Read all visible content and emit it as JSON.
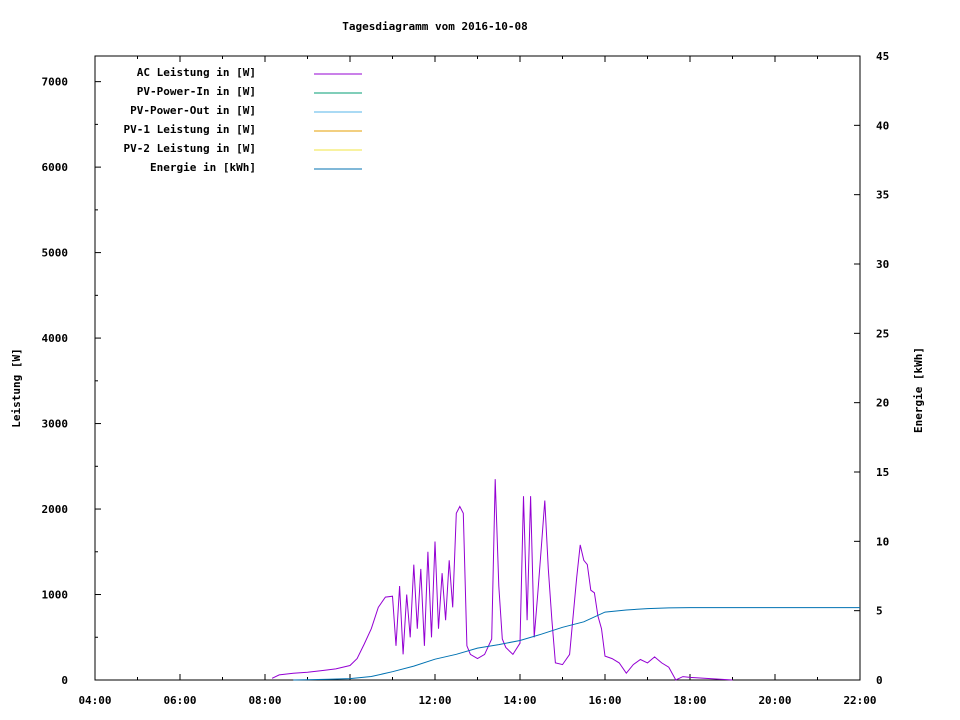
{
  "chart_data": {
    "type": "line",
    "title": "Tagesdiagramm vom 2016-10-08",
    "ylabel": "Leistung [W]",
    "y2label": "Energie [kWh]",
    "xlim": [
      "04:00",
      "22:00"
    ],
    "ylim": [
      0,
      7300
    ],
    "y2lim": [
      0,
      45
    ],
    "x_ticks": [
      "04:00",
      "06:00",
      "08:00",
      "10:00",
      "12:00",
      "14:00",
      "16:00",
      "18:00",
      "20:00",
      "22:00"
    ],
    "y_ticks": [
      0,
      1000,
      2000,
      3000,
      4000,
      5000,
      6000,
      7000
    ],
    "y2_ticks": [
      0,
      5,
      10,
      15,
      20,
      25,
      30,
      35,
      40,
      45
    ],
    "legend_position": "top-left",
    "series": [
      {
        "name": "AC Leistung in [W]",
        "color": "#9400d3",
        "axis": "left",
        "points": [
          [
            "08:10",
            20
          ],
          [
            "08:20",
            60
          ],
          [
            "08:40",
            80
          ],
          [
            "09:00",
            90
          ],
          [
            "09:20",
            110
          ],
          [
            "09:40",
            130
          ],
          [
            "10:00",
            170
          ],
          [
            "10:10",
            250
          ],
          [
            "10:20",
            420
          ],
          [
            "10:30",
            600
          ],
          [
            "10:40",
            850
          ],
          [
            "10:50",
            970
          ],
          [
            "11:00",
            980
          ],
          [
            "11:05",
            400
          ],
          [
            "11:10",
            1100
          ],
          [
            "11:15",
            300
          ],
          [
            "11:20",
            1000
          ],
          [
            "11:25",
            500
          ],
          [
            "11:30",
            1350
          ],
          [
            "11:35",
            600
          ],
          [
            "11:40",
            1300
          ],
          [
            "11:45",
            400
          ],
          [
            "11:50",
            1500
          ],
          [
            "11:55",
            500
          ],
          [
            "12:00",
            1620
          ],
          [
            "12:05",
            600
          ],
          [
            "12:10",
            1250
          ],
          [
            "12:15",
            700
          ],
          [
            "12:20",
            1400
          ],
          [
            "12:25",
            850
          ],
          [
            "12:30",
            1950
          ],
          [
            "12:35",
            2030
          ],
          [
            "12:40",
            1950
          ],
          [
            "12:45",
            400
          ],
          [
            "12:50",
            300
          ],
          [
            "13:00",
            250
          ],
          [
            "13:10",
            300
          ],
          [
            "13:20",
            480
          ],
          [
            "13:25",
            2350
          ],
          [
            "13:30",
            1100
          ],
          [
            "13:35",
            480
          ],
          [
            "13:40",
            380
          ],
          [
            "13:50",
            300
          ],
          [
            "14:00",
            430
          ],
          [
            "14:05",
            2150
          ],
          [
            "14:10",
            700
          ],
          [
            "14:15",
            2150
          ],
          [
            "14:20",
            500
          ],
          [
            "14:25",
            1000
          ],
          [
            "14:30",
            1550
          ],
          [
            "14:35",
            2100
          ],
          [
            "14:40",
            1300
          ],
          [
            "14:45",
            700
          ],
          [
            "14:50",
            200
          ],
          [
            "15:00",
            180
          ],
          [
            "15:10",
            300
          ],
          [
            "15:20",
            1200
          ],
          [
            "15:25",
            1580
          ],
          [
            "15:30",
            1400
          ],
          [
            "15:35",
            1350
          ],
          [
            "15:40",
            1050
          ],
          [
            "15:45",
            1020
          ],
          [
            "15:50",
            750
          ],
          [
            "15:55",
            600
          ],
          [
            "16:00",
            280
          ],
          [
            "16:10",
            250
          ],
          [
            "16:20",
            200
          ],
          [
            "16:30",
            80
          ],
          [
            "16:40",
            180
          ],
          [
            "16:50",
            240
          ],
          [
            "17:00",
            200
          ],
          [
            "17:10",
            270
          ],
          [
            "17:20",
            200
          ],
          [
            "17:30",
            150
          ],
          [
            "17:40",
            0
          ],
          [
            "17:50",
            40
          ],
          [
            "18:00",
            30
          ],
          [
            "18:20",
            20
          ],
          [
            "18:40",
            10
          ],
          [
            "19:00",
            0
          ]
        ]
      },
      {
        "name": "PV-Power-In in [W]",
        "color": "#009e73",
        "axis": "left",
        "points": []
      },
      {
        "name": "PV-Power-Out in [W]",
        "color": "#56b4e9",
        "axis": "left",
        "points": []
      },
      {
        "name": "PV-1 Leistung in [W]",
        "color": "#e69f00",
        "axis": "left",
        "points": []
      },
      {
        "name": "PV-2 Leistung in [W]",
        "color": "#f0e442",
        "axis": "left",
        "points": []
      },
      {
        "name": "Energie in [kWh]",
        "color": "#0072b2",
        "axis": "right",
        "points": [
          [
            "08:40",
            0.0
          ],
          [
            "09:00",
            0.02
          ],
          [
            "09:30",
            0.05
          ],
          [
            "10:00",
            0.1
          ],
          [
            "10:30",
            0.25
          ],
          [
            "11:00",
            0.6
          ],
          [
            "11:30",
            1.0
          ],
          [
            "12:00",
            1.5
          ],
          [
            "12:30",
            1.85
          ],
          [
            "13:00",
            2.3
          ],
          [
            "13:30",
            2.55
          ],
          [
            "14:00",
            2.85
          ],
          [
            "14:30",
            3.3
          ],
          [
            "15:00",
            3.8
          ],
          [
            "15:30",
            4.2
          ],
          [
            "16:00",
            4.9
          ],
          [
            "16:30",
            5.05
          ],
          [
            "17:00",
            5.15
          ],
          [
            "17:30",
            5.2
          ],
          [
            "18:00",
            5.22
          ],
          [
            "20:00",
            5.22
          ],
          [
            "22:00",
            5.22
          ]
        ]
      }
    ]
  }
}
